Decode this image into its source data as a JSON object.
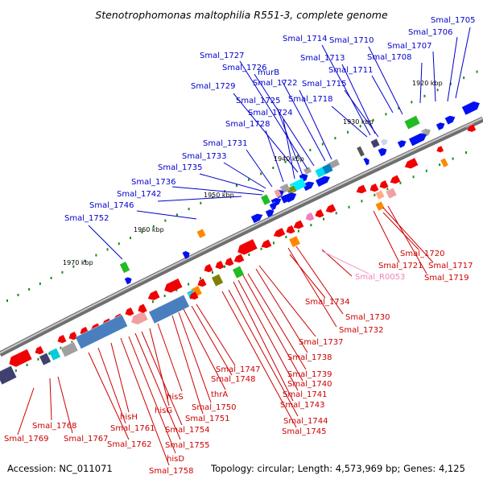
{
  "title": "Stenotrophomonas maltophilia R551-3, complete genome",
  "footer": {
    "accession": "Accession: NC_011071",
    "topology": "Topology: circular; Length: 4,573,969 bp; Genes: 4,125"
  },
  "kbp_labels": [
    "1920 kbp",
    "1930 kbp",
    "1940 kbp",
    "1950 kbp",
    "1960 kbp",
    "1970 kbp"
  ],
  "colors": {
    "forward_strand": "#0000ee",
    "reverse_strand": "#ee0000",
    "rna_gene": "#f090c8",
    "tick": "#1a8a1a",
    "backbone": "#888888"
  },
  "top_labels": [
    "Smal_1705",
    "Smal_1706",
    "Smal_1707",
    "Smal_1708",
    "Smal_1710",
    "Smal_1711",
    "Smal_1713",
    "Smal_1714",
    "Smal_1715",
    "Smal_1718",
    "Smal_1722",
    "murB",
    "Smal_1726",
    "Smal_1727",
    "Smal_1729",
    "Smal_1725",
    "Smal_1724",
    "Smal_1728",
    "Smal_1731",
    "Smal_1733",
    "Smal_1735",
    "Smal_1736",
    "Smal_1742",
    "Smal_1746",
    "Smal_1752"
  ],
  "bottom_labels": [
    "Smal_1720",
    "Smal_1717",
    "Smal_1721",
    "Smal_1719",
    "Smal_R0053",
    "Smal_1734",
    "Smal_1730",
    "Smal_1732",
    "Smal_1737",
    "Smal_1738",
    "Smal_1739",
    "Smal_1740",
    "Smal_1741",
    "Smal_1743",
    "Smal_1744",
    "Smal_1745",
    "Smal_1747",
    "Smal_1748",
    "thrA",
    "Smal_1750",
    "Smal_1751",
    "hisS",
    "hisG",
    "Smal_1754",
    "Smal_1755",
    "hisD",
    "Smal_1758",
    "hisH",
    "Smal_1761",
    "Smal_1762",
    "Smal_1768",
    "Smal_1767",
    "Smal_1769"
  ]
}
